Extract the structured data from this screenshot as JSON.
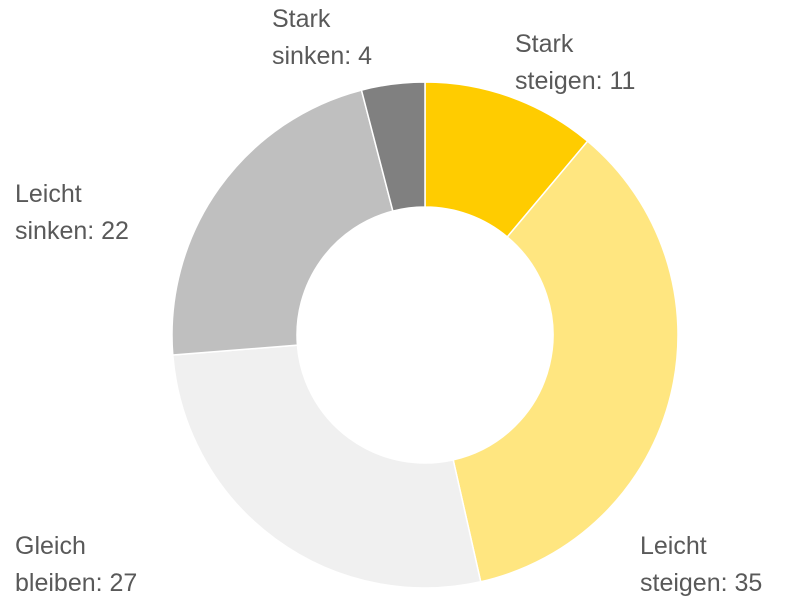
{
  "chart_data": {
    "type": "donut",
    "values": [
      11,
      35,
      27,
      22,
      4
    ],
    "value_labels": [
      "Stark steigen: 11",
      "Leicht steigen: 35",
      "Gleich bleiben: 27",
      "Leicht sinken: 22",
      "Stark sinken: 4"
    ],
    "colors": [
      "#FFCC00",
      "#FFE680",
      "#F0F0F0",
      "#BFBFBF",
      "#808080"
    ]
  }
}
